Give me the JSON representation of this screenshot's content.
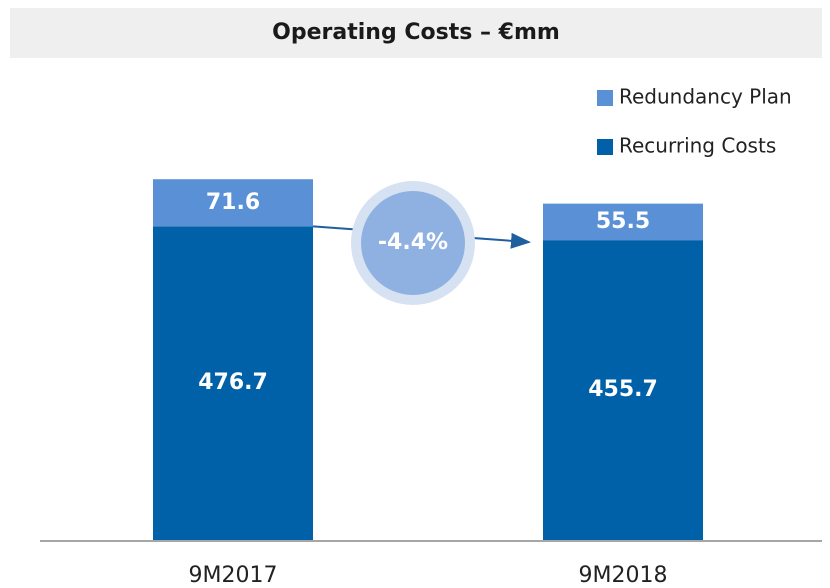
{
  "chart_data": {
    "type": "stacked_bar",
    "title": "Operating Costs – €mm",
    "categories": [
      "9M2017",
      "9M2018"
    ],
    "series": [
      {
        "name": "Recurring Costs",
        "color": "#0060a8",
        "values": [
          476.7,
          455.7
        ]
      },
      {
        "name": "Redundancy Plan",
        "color": "#5a90d6",
        "values": [
          71.6,
          55.5
        ]
      }
    ],
    "annotation": "-4.4%"
  }
}
